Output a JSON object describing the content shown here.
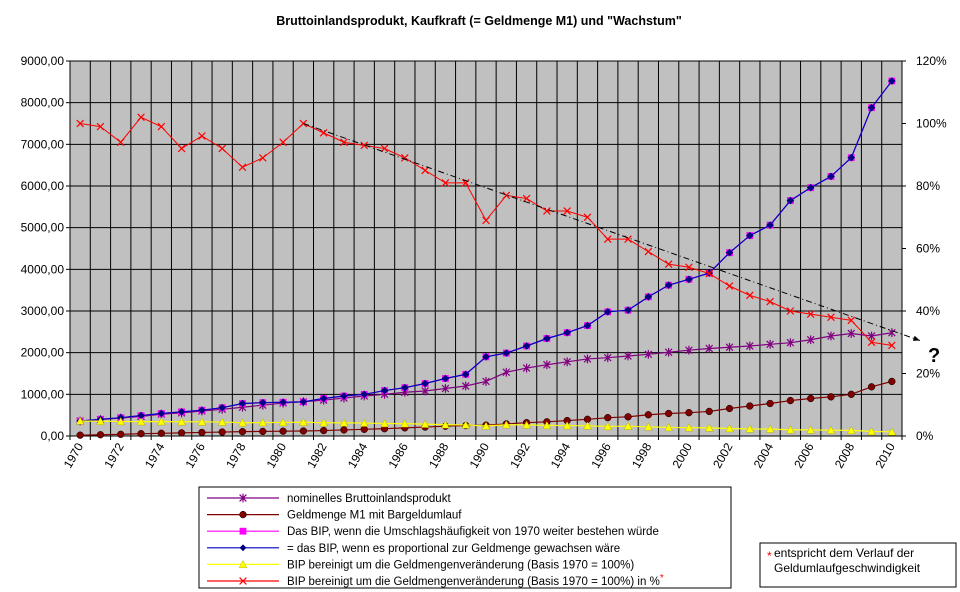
{
  "chart_data": {
    "type": "line",
    "title": "Bruttoinlandsprodukt,  Kaufkraft (= Geldmenge M1) und \"Wachstum\"",
    "x": [
      1970,
      1971,
      1972,
      1973,
      1974,
      1975,
      1976,
      1977,
      1978,
      1979,
      1980,
      1981,
      1982,
      1983,
      1984,
      1985,
      1986,
      1987,
      1988,
      1989,
      1990,
      1991,
      1992,
      1993,
      1994,
      1995,
      1996,
      1997,
      1998,
      1999,
      2000,
      2001,
      2002,
      2003,
      2004,
      2005,
      2006,
      2007,
      2008,
      2009,
      2010
    ],
    "x_tick_labels": [
      "1970",
      "1972",
      "1974",
      "1976",
      "1978",
      "1980",
      "1982",
      "1984",
      "1986",
      "1988",
      "1990",
      "1992",
      "1994",
      "1996",
      "1998",
      "2000",
      "2002",
      "2004",
      "2006",
      "2008",
      "2010"
    ],
    "ylim": [
      0,
      9000
    ],
    "y_tick_labels": [
      "0,00",
      "1000,00",
      "2000,00",
      "3000,00",
      "4000,00",
      "5000,00",
      "6000,00",
      "7000,00",
      "8000,00",
      "9000,00"
    ],
    "y2lim": [
      0,
      120
    ],
    "y2_tick_labels": [
      "0%",
      "20%",
      "40%",
      "60%",
      "80%",
      "100%",
      "120%"
    ],
    "grid": true,
    "series": [
      {
        "name": "nominelles Bruttoinlandsprodukt",
        "axis": "left",
        "color": "#800080",
        "marker": "star",
        "values": [
          360,
          395,
          430,
          470,
          525,
          555,
          600,
          640,
          690,
          740,
          790,
          820,
          860,
          910,
          960,
          1000,
          1050,
          1080,
          1140,
          1200,
          1310,
          1530,
          1630,
          1710,
          1780,
          1850,
          1880,
          1920,
          1960,
          2010,
          2060,
          2100,
          2130,
          2160,
          2200,
          2240,
          2310,
          2400,
          2460,
          2400,
          2480
        ]
      },
      {
        "name": "Geldmenge M1 mit Bargeldumlauf",
        "axis": "left",
        "color": "#800000",
        "marker": "circle",
        "values": [
          20,
          30,
          40,
          55,
          65,
          75,
          85,
          95,
          105,
          110,
          115,
          120,
          130,
          145,
          160,
          175,
          195,
          215,
          235,
          250,
          260,
          290,
          320,
          340,
          370,
          400,
          440,
          460,
          510,
          540,
          560,
          590,
          660,
          720,
          780,
          850,
          900,
          940,
          1000,
          1180,
          1310
        ]
      },
      {
        "name": "Das BIP, wenn die Umschlagshäufigkeit von 1970 weiter bestehen würde",
        "axis": "left",
        "color": "#ff00ff",
        "marker": "square",
        "values": [
          360,
          400,
          440,
          490,
          540,
          580,
          620,
          680,
          780,
          800,
          810,
          820,
          900,
          960,
          1000,
          1090,
          1160,
          1260,
          1380,
          1480,
          1900,
          1990,
          2160,
          2340,
          2480,
          2650,
          2980,
          3020,
          3340,
          3620,
          3760,
          3910,
          4400,
          4810,
          5060,
          5650,
          5960,
          6230,
          6680,
          7880,
          8520
        ]
      },
      {
        "name": "= das BIP, wenn es proportional zur Geldmenge gewachsen wäre",
        "axis": "left",
        "color": "#000080",
        "marker": "diamond",
        "values": [
          360,
          400,
          440,
          490,
          540,
          580,
          620,
          680,
          780,
          800,
          810,
          820,
          900,
          960,
          1000,
          1090,
          1160,
          1260,
          1380,
          1480,
          1900,
          1990,
          2160,
          2340,
          2480,
          2650,
          2980,
          3020,
          3340,
          3620,
          3760,
          3910,
          4400,
          4810,
          5060,
          5650,
          5960,
          6230,
          6680,
          7880,
          8520
        ]
      },
      {
        "name": "BIP bereinigt um die Geldmengenveränderung (Basis 1970 = 100%)",
        "axis": "left",
        "color": "#ffff00",
        "marker": "triangle",
        "values": [
          360,
          355,
          350,
          345,
          345,
          342,
          340,
          335,
          318,
          322,
          325,
          330,
          320,
          315,
          310,
          300,
          295,
          285,
          270,
          265,
          240,
          270,
          265,
          255,
          250,
          245,
          230,
          235,
          220,
          205,
          200,
          195,
          180,
          170,
          165,
          150,
          145,
          140,
          135,
          110,
          100
        ]
      },
      {
        "name": "BIP bereinigt um die Geldmengenveränderung (Basis 1970 = 100%) in %",
        "axis": "right",
        "color": "#ff0000",
        "marker": "x",
        "values": [
          100,
          99,
          94,
          102,
          99,
          92,
          96,
          92,
          86,
          89,
          94,
          100,
          97,
          94,
          93,
          92,
          89,
          85,
          81,
          81,
          69,
          77,
          76,
          72,
          72,
          70,
          63,
          63,
          59,
          55,
          54,
          52,
          48,
          45,
          43,
          40,
          39,
          38,
          37,
          30,
          29
        ]
      }
    ],
    "trendline": {
      "from": [
        1981,
        100
      ],
      "to": [
        2010,
        28
      ],
      "style": "dash-dot"
    },
    "annotation": "?",
    "legend_position": "bottom",
    "note": {
      "marker": "*",
      "text": "entspricht dem Verlauf der Geldumlaufgeschwindigkeit"
    }
  }
}
